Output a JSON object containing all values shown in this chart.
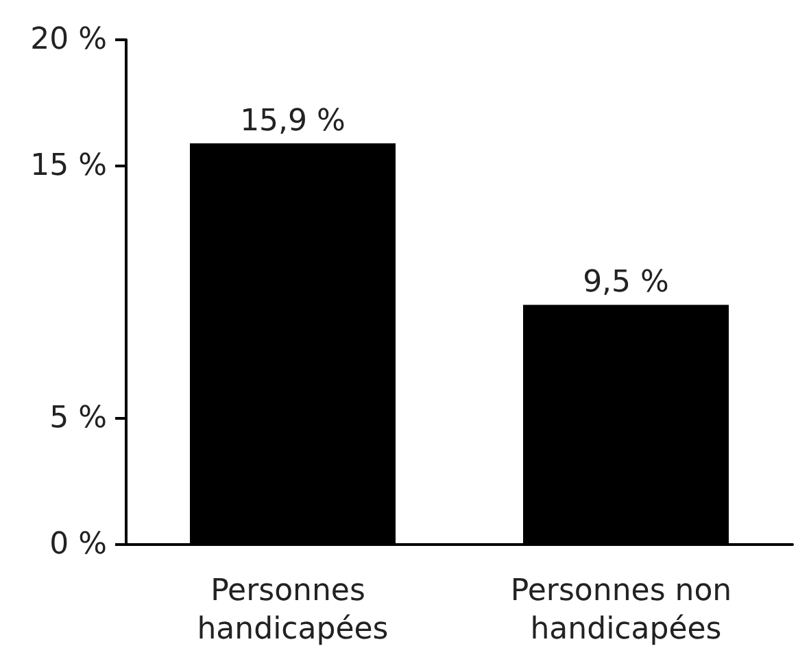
{
  "chart_data": {
    "type": "bar",
    "categories": [
      "Personnes handicapées",
      "Personnes non handicapées"
    ],
    "values": [
      15.9,
      9.5
    ],
    "color": "#000000",
    "value_labels": [
      "15,9 %",
      "9,5 %"
    ],
    "ylim": [
      0,
      20
    ],
    "yticks": [
      {
        "value": 0,
        "label": "0 %"
      },
      {
        "value": 5,
        "label": "5 %"
      },
      {
        "value": 15,
        "label": "15 %"
      },
      {
        "value": 20,
        "label": "20 %"
      }
    ],
    "grid": false
  }
}
